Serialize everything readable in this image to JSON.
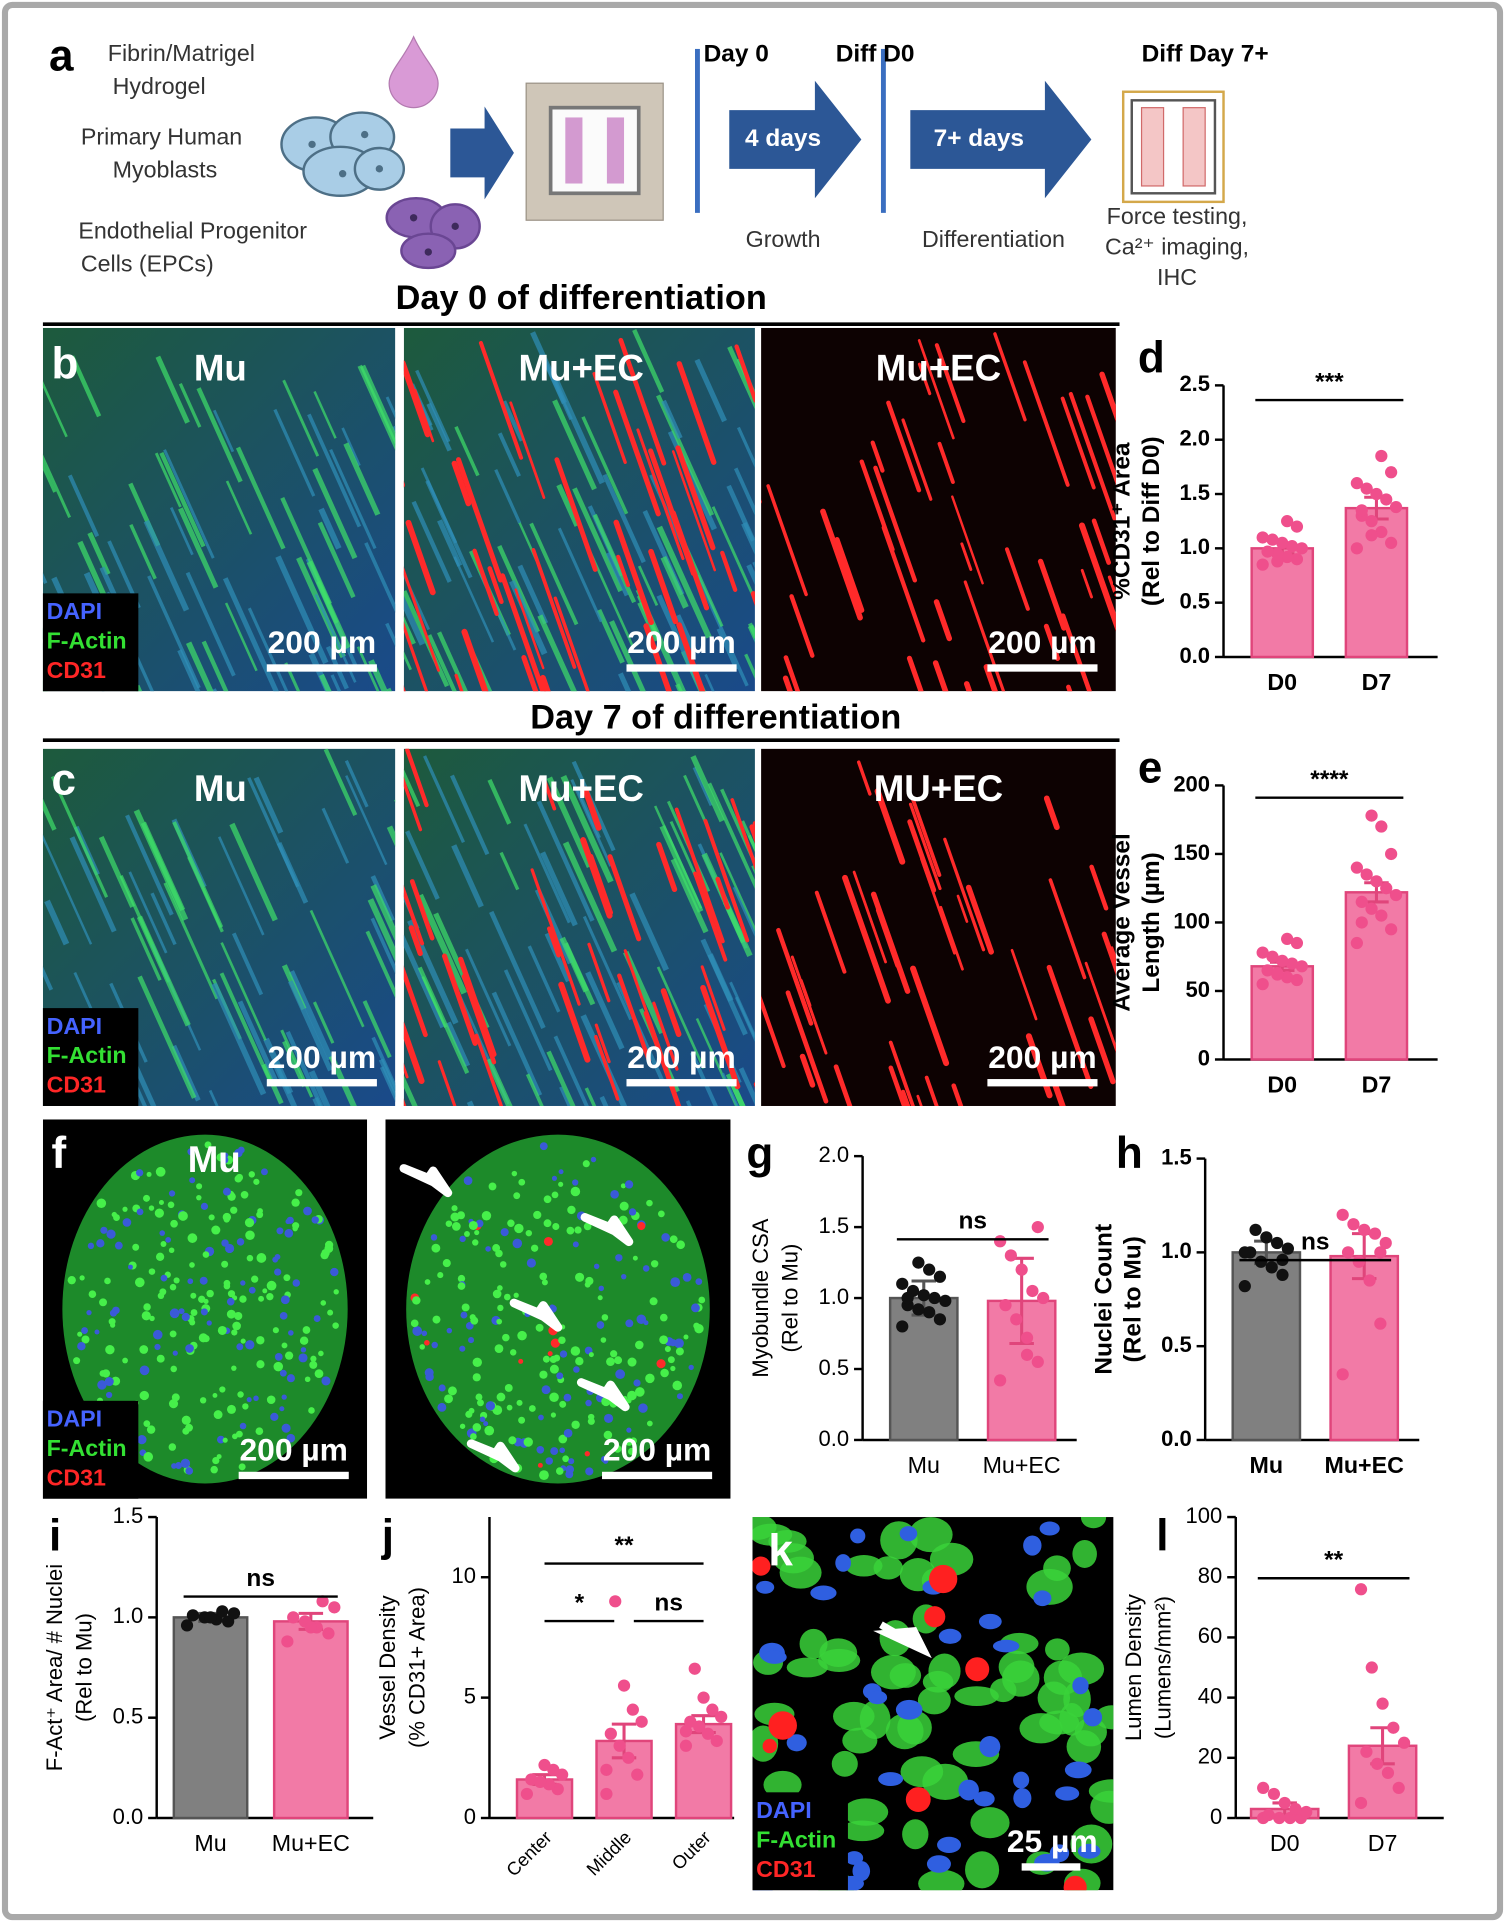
{
  "panel_a": {
    "panel": "a",
    "inputs": [
      [
        "Fibrin/Matrigel",
        "Hydrogel"
      ],
      [
        "Primary Human",
        "Myoblasts"
      ],
      [
        "Endothelial Progenitor",
        "Cells (EPCs)"
      ]
    ],
    "timepoints": [
      "Day 0",
      "Diff D0",
      "Diff Day 7+"
    ],
    "durations": [
      "4 days",
      "7+ days"
    ],
    "phases": [
      "Growth",
      "Differentiation"
    ],
    "readouts": [
      "Force testing,",
      "Ca²⁺ imaging,",
      "IHC"
    ]
  },
  "image_rows": [
    {
      "panel": "b",
      "heading": "Day 0 of differentiation",
      "images": [
        {
          "label": "Mu",
          "scale": "200 µm",
          "legend": [
            "DAPI",
            "F-Actin",
            "CD31"
          ]
        },
        {
          "label": "Mu+EC",
          "scale": "200 µm"
        },
        {
          "label": "Mu+EC",
          "scale": "200 µm"
        }
      ]
    },
    {
      "panel": "c",
      "heading": "Day 7 of differentiation",
      "images": [
        {
          "label": "Mu",
          "scale": "200 µm",
          "legend": [
            "DAPI",
            "F-Actin",
            "CD31"
          ]
        },
        {
          "label": "Mu+EC",
          "scale": "200 µm"
        },
        {
          "label": "MU+EC",
          "scale": "200 µm"
        }
      ]
    },
    {
      "panel": "f",
      "images": [
        {
          "label": "Mu",
          "scale": "200 µm",
          "legend": [
            "DAPI",
            "F-Actin",
            "CD31"
          ]
        },
        {
          "scale": "200 µm"
        }
      ]
    },
    {
      "panel": "k",
      "images": [
        {
          "scale": "25 µm",
          "legend": [
            "DAPI",
            "F-Actin",
            "CD31"
          ]
        }
      ]
    }
  ],
  "chart_data": [
    {
      "type": "bar",
      "panel": "d",
      "y_label": [
        "%CD31⁺ Area",
        "(Rel to Diff D0)"
      ],
      "categories": [
        "D0",
        "D7"
      ],
      "values": [
        1.0,
        1.37
      ],
      "errors": [
        0.05,
        0.1
      ],
      "colors": [
        "#f27aa6",
        "#f27aa6"
      ],
      "point_colors": [
        "#ef4f8c",
        "#ef4f8c"
      ],
      "points": [
        [
          0.85,
          0.9,
          0.92,
          0.95,
          0.97,
          1.0,
          1.02,
          1.05,
          1.08,
          1.1,
          1.2,
          1.25,
          0.88
        ],
        [
          1.0,
          1.05,
          1.15,
          1.25,
          1.3,
          1.38,
          1.45,
          1.5,
          1.55,
          1.6,
          1.7,
          1.85,
          1.12,
          1.35
        ]
      ],
      "ylim": [
        0,
        2.5
      ],
      "yticks": [
        {
          "value": 0,
          "label": "0.0"
        },
        {
          "value": 0.5,
          "label": "0.5"
        },
        {
          "value": 1,
          "label": "1.0"
        },
        {
          "value": 1.5,
          "label": "1.5"
        },
        {
          "value": 2,
          "label": "2.0"
        },
        {
          "value": 2.5,
          "label": "2.5"
        }
      ],
      "significance": [
        "***"
      ]
    },
    {
      "type": "bar",
      "panel": "e",
      "y_label": [
        "Average Vessel",
        "Length (µm)"
      ],
      "categories": [
        "D0",
        "D7"
      ],
      "values": [
        68,
        122
      ],
      "errors": [
        3,
        7
      ],
      "colors": [
        "#f27aa6",
        "#f27aa6"
      ],
      "point_colors": [
        "#ef4f8c",
        "#ef4f8c"
      ],
      "points": [
        [
          55,
          58,
          60,
          62,
          65,
          68,
          70,
          72,
          75,
          78,
          85,
          88,
          63
        ],
        [
          85,
          95,
          105,
          110,
          115,
          120,
          125,
          130,
          135,
          140,
          150,
          170,
          178,
          100
        ]
      ],
      "ylim": [
        0,
        200
      ],
      "yticks": [
        0,
        50,
        100,
        150,
        200
      ],
      "significance": [
        "****"
      ]
    },
    {
      "type": "bar",
      "panel": "g",
      "y_label": [
        "Myobundle CSA",
        "(Rel to  Mu)"
      ],
      "categories": [
        "Mu",
        "Mu+EC"
      ],
      "values": [
        1.0,
        0.98
      ],
      "errors": [
        0.12,
        0.3
      ],
      "colors": [
        "#808080",
        "#f27aa6"
      ],
      "point_colors": [
        "#111111",
        "#ef4f8c"
      ],
      "points": [
        [
          0.8,
          0.85,
          0.9,
          0.92,
          0.95,
          0.98,
          1.0,
          1.02,
          1.05,
          1.1,
          1.15,
          1.2,
          1.25,
          1.0
        ],
        [
          0.42,
          0.55,
          0.72,
          0.85,
          0.95,
          1.0,
          1.05,
          1.2,
          1.3,
          1.4,
          1.5,
          0.6
        ]
      ],
      "ylim": [
        0,
        2.0
      ],
      "yticks": [
        {
          "value": 0,
          "label": "0.0"
        },
        {
          "value": 0.5,
          "label": "0.5"
        },
        {
          "value": 1,
          "label": "1.0"
        },
        {
          "value": 1.5,
          "label": "1.5"
        },
        {
          "value": 2,
          "label": "2.0"
        }
      ],
      "significance": [
        "ns"
      ]
    },
    {
      "type": "bar",
      "panel": "h",
      "y_label": [
        "Nuclei Count",
        "(Rel to Mu)"
      ],
      "categories": [
        "Mu",
        "Mu+EC"
      ],
      "values": [
        1.0,
        0.98
      ],
      "errors": [
        0.06,
        0.12
      ],
      "colors": [
        "#808080",
        "#f27aa6"
      ],
      "point_colors": [
        "#111111",
        "#ef4f8c"
      ],
      "points": [
        [
          0.82,
          0.88,
          0.92,
          0.95,
          1.0,
          1.02,
          1.05,
          1.08,
          1.12,
          1.0,
          0.96
        ],
        [
          0.35,
          0.62,
          0.85,
          0.95,
          1.0,
          1.05,
          1.1,
          1.12,
          1.15,
          1.2,
          1.0
        ]
      ],
      "ylim": [
        0,
        1.5
      ],
      "yticks": [
        {
          "value": 0,
          "label": "0.0"
        },
        {
          "value": 0.5,
          "label": "0.5"
        },
        {
          "value": 1,
          "label": "1.0"
        },
        {
          "value": 1.5,
          "label": "1.5"
        }
      ],
      "significance": [
        "ns"
      ]
    },
    {
      "type": "bar",
      "panel": "i",
      "y_label": [
        "F-Act⁺ Area/ # Nuclei",
        "(Rel to Mu)"
      ],
      "categories": [
        "Mu",
        "Mu+EC"
      ],
      "values": [
        1.0,
        0.98
      ],
      "errors": [
        0.02,
        0.04
      ],
      "colors": [
        "#808080",
        "#f27aa6"
      ],
      "point_colors": [
        "#111111",
        "#ef4f8c"
      ],
      "points": [
        [
          0.96,
          0.98,
          0.99,
          1.0,
          1.01,
          1.02,
          1.03,
          1.0
        ],
        [
          0.88,
          0.92,
          0.95,
          0.98,
          1.0,
          1.05,
          1.08,
          0.95
        ]
      ],
      "ylim": [
        0,
        1.5
      ],
      "yticks": [
        {
          "value": 0,
          "label": "0.0"
        },
        {
          "value": 0.5,
          "label": "0.5"
        },
        {
          "value": 1,
          "label": "1.0"
        },
        {
          "value": 1.5,
          "label": "1.5"
        }
      ],
      "significance": [
        "ns"
      ]
    },
    {
      "type": "bar",
      "panel": "j",
      "y_label": [
        "Vessel Density",
        "(% CD31+ Area)"
      ],
      "categories": [
        "Center",
        "Middle",
        "Outer"
      ],
      "values": [
        1.6,
        3.2,
        3.9
      ],
      "errors": [
        0.2,
        0.7,
        0.35
      ],
      "colors": [
        "#f27aa6",
        "#f27aa6",
        "#f27aa6"
      ],
      "point_colors": [
        "#ef4f8c",
        "#ef4f8c",
        "#ef4f8c"
      ],
      "points": [
        [
          1.0,
          1.2,
          1.4,
          1.5,
          1.6,
          1.8,
          2.0,
          2.2
        ],
        [
          1.0,
          1.8,
          2.5,
          3.0,
          3.5,
          4.0,
          4.5,
          5.5,
          9.0,
          2.0
        ],
        [
          3.0,
          3.2,
          3.5,
          3.8,
          4.0,
          4.2,
          4.5,
          5.0,
          6.2,
          3.6
        ]
      ],
      "ylim": [
        0,
        12.5
      ],
      "yticks": [
        0,
        5,
        10
      ],
      "significance": [
        "**",
        "*",
        "ns"
      ]
    },
    {
      "type": "bar",
      "panel": "l",
      "y_label": [
        "Lumen Density",
        "(Lumens/mm²)"
      ],
      "categories": [
        "D0",
        "D7"
      ],
      "values": [
        3,
        24
      ],
      "errors": [
        2,
        6
      ],
      "colors": [
        "#f27aa6",
        "#f27aa6"
      ],
      "point_colors": [
        "#ef4f8c",
        "#ef4f8c"
      ],
      "points": [
        [
          0,
          0,
          0,
          0,
          1,
          2,
          3,
          5,
          8,
          10
        ],
        [
          5,
          10,
          15,
          18,
          22,
          25,
          30,
          38,
          50,
          76
        ]
      ],
      "ylim": [
        0,
        100
      ],
      "yticks": [
        0,
        20,
        40,
        60,
        80,
        100
      ],
      "significance": [
        "**"
      ]
    }
  ]
}
